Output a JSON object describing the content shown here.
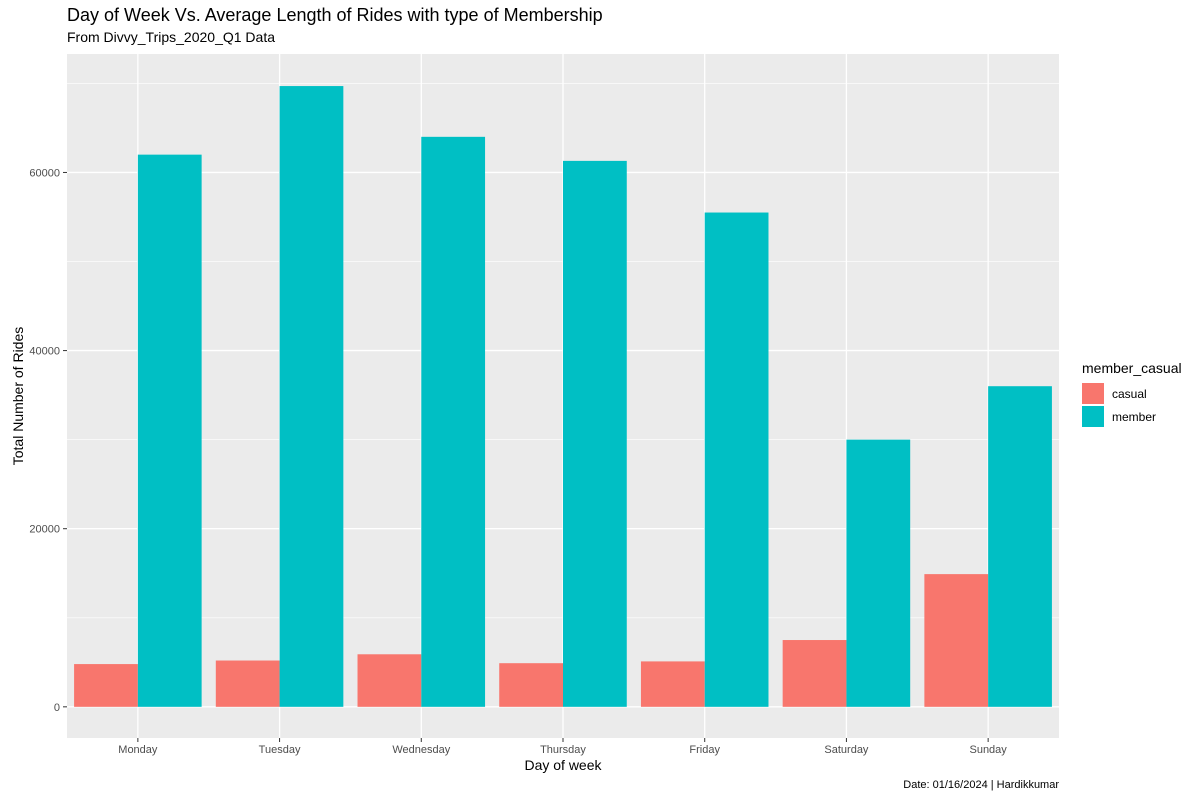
{
  "chart_data": {
    "type": "bar",
    "title": "Day of Week Vs. Average Length of Rides with type of Membership",
    "subtitle": "From Divvy_Trips_2020_Q1 Data",
    "caption": "Date: 01/16/2024 | Hardikkumar",
    "xlabel": "Day of week",
    "ylabel": "Total Number of Rides",
    "categories": [
      "Monday",
      "Tuesday",
      "Wednesday",
      "Thursday",
      "Friday",
      "Saturday",
      "Sunday"
    ],
    "series": [
      {
        "name": "casual",
        "color": "#F8766D",
        "values": [
          4800,
          5200,
          5900,
          4900,
          5100,
          7500,
          14900
        ]
      },
      {
        "name": "member",
        "color": "#00BFC4",
        "values": [
          62000,
          69700,
          64000,
          61300,
          55500,
          30000,
          36000
        ]
      }
    ],
    "ylim": [
      -3500,
      73300
    ],
    "yticks": [
      0,
      20000,
      40000,
      60000
    ],
    "legend": {
      "title": "member_casual",
      "position": "right"
    },
    "grid": true,
    "panel_color": "#EBEBEB"
  }
}
